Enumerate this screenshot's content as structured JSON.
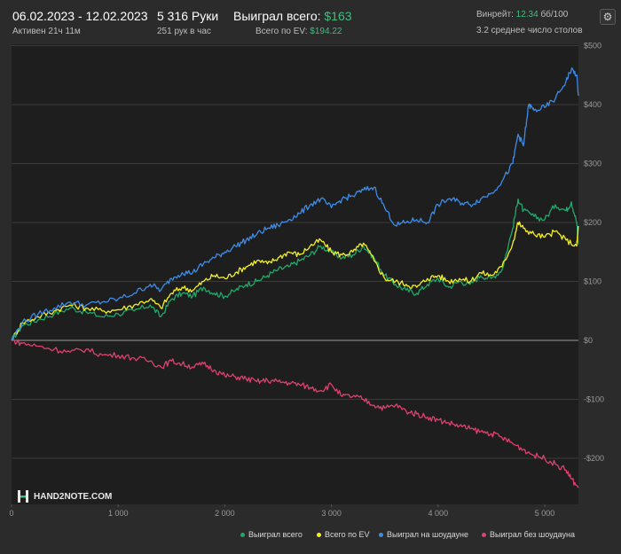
{
  "header": {
    "date_range": "06.02.2023 - 12.02.2023",
    "active_time": "Активен 21ч 11м",
    "hands": "5 316 Руки",
    "hands_rate": "251 рук в час",
    "won_label": "Выиграл всего:",
    "won_value": "$163",
    "ev_label": "Всего по EV:",
    "ev_value": "$194.22",
    "winrate_label": "Винрейт:",
    "winrate_value": "12.34",
    "winrate_suffix": "бб/100",
    "avg_tables": "3.2 среднее число столов"
  },
  "icons": {
    "settings": "gear-icon",
    "logo": "hand2note-logo-icon"
  },
  "logo_text": "HAND2NOTE.COM",
  "colors": {
    "background": "#2b2b2b",
    "won_total": "#1faa6a",
    "ev": "#f4f024",
    "showdown": "#3d8ce8",
    "non_showdown": "#e0406e"
  },
  "chart_data": {
    "type": "line",
    "x_ticks": [
      0,
      1000,
      2000,
      3000,
      4000,
      5000
    ],
    "x_tick_labels": [
      "0",
      "1 000",
      "2 000",
      "3 000",
      "4 000",
      "5 000"
    ],
    "y_ticks": [
      -200,
      -100,
      0,
      100,
      200,
      300,
      400,
      500
    ],
    "y_tick_labels": [
      "-$200",
      "-$100",
      "$0",
      "$100",
      "$200",
      "$300",
      "$400",
      "$500"
    ],
    "xlim": [
      0,
      5316
    ],
    "ylim": [
      -260,
      500
    ],
    "grid": "horizontal",
    "legend_position": "bottom-right",
    "series": [
      {
        "name": "Выиграл всего",
        "color": "#1faa6a",
        "points": [
          [
            0,
            0
          ],
          [
            100,
            25
          ],
          [
            250,
            35
          ],
          [
            400,
            45
          ],
          [
            550,
            55
          ],
          [
            700,
            48
          ],
          [
            850,
            40
          ],
          [
            1000,
            45
          ],
          [
            1150,
            50
          ],
          [
            1300,
            60
          ],
          [
            1400,
            40
          ],
          [
            1500,
            70
          ],
          [
            1600,
            80
          ],
          [
            1700,
            75
          ],
          [
            1800,
            90
          ],
          [
            1900,
            80
          ],
          [
            2000,
            75
          ],
          [
            2100,
            85
          ],
          [
            2200,
            95
          ],
          [
            2300,
            100
          ],
          [
            2400,
            110
          ],
          [
            2500,
            120
          ],
          [
            2600,
            125
          ],
          [
            2700,
            135
          ],
          [
            2800,
            145
          ],
          [
            2900,
            160
          ],
          [
            3000,
            150
          ],
          [
            3100,
            140
          ],
          [
            3200,
            145
          ],
          [
            3300,
            160
          ],
          [
            3400,
            140
          ],
          [
            3500,
            110
          ],
          [
            3600,
            95
          ],
          [
            3700,
            85
          ],
          [
            3800,
            80
          ],
          [
            3900,
            95
          ],
          [
            4000,
            105
          ],
          [
            4100,
            90
          ],
          [
            4200,
            100
          ],
          [
            4300,
            95
          ],
          [
            4400,
            110
          ],
          [
            4500,
            105
          ],
          [
            4600,
            120
          ],
          [
            4700,
            190
          ],
          [
            4750,
            240
          ],
          [
            4800,
            220
          ],
          [
            4900,
            210
          ],
          [
            5000,
            205
          ],
          [
            5100,
            230
          ],
          [
            5200,
            220
          ],
          [
            5250,
            235
          ],
          [
            5300,
            200
          ],
          [
            5316,
            163
          ]
        ]
      },
      {
        "name": "Всего по EV",
        "color": "#f4f024",
        "points": [
          [
            0,
            0
          ],
          [
            100,
            30
          ],
          [
            250,
            40
          ],
          [
            400,
            50
          ],
          [
            550,
            60
          ],
          [
            700,
            55
          ],
          [
            850,
            50
          ],
          [
            1000,
            52
          ],
          [
            1150,
            60
          ],
          [
            1300,
            70
          ],
          [
            1400,
            55
          ],
          [
            1500,
            80
          ],
          [
            1600,
            90
          ],
          [
            1700,
            85
          ],
          [
            1800,
            100
          ],
          [
            1900,
            110
          ],
          [
            2000,
            105
          ],
          [
            2100,
            115
          ],
          [
            2200,
            125
          ],
          [
            2300,
            135
          ],
          [
            2400,
            130
          ],
          [
            2500,
            140
          ],
          [
            2600,
            150
          ],
          [
            2700,
            145
          ],
          [
            2800,
            160
          ],
          [
            2900,
            170
          ],
          [
            3000,
            150
          ],
          [
            3100,
            145
          ],
          [
            3200,
            150
          ],
          [
            3300,
            165
          ],
          [
            3400,
            135
          ],
          [
            3500,
            105
          ],
          [
            3600,
            100
          ],
          [
            3700,
            95
          ],
          [
            3800,
            90
          ],
          [
            3900,
            105
          ],
          [
            4000,
            110
          ],
          [
            4100,
            100
          ],
          [
            4200,
            105
          ],
          [
            4300,
            100
          ],
          [
            4400,
            115
          ],
          [
            4500,
            110
          ],
          [
            4600,
            125
          ],
          [
            4700,
            165
          ],
          [
            4750,
            200
          ],
          [
            4800,
            190
          ],
          [
            4900,
            180
          ],
          [
            5000,
            175
          ],
          [
            5100,
            185
          ],
          [
            5200,
            170
          ],
          [
            5300,
            160
          ],
          [
            5316,
            194
          ]
        ]
      },
      {
        "name": "Выиграл на шоудауне",
        "color": "#3d8ce8",
        "points": [
          [
            0,
            0
          ],
          [
            100,
            30
          ],
          [
            250,
            45
          ],
          [
            400,
            55
          ],
          [
            550,
            65
          ],
          [
            700,
            60
          ],
          [
            850,
            65
          ],
          [
            1000,
            70
          ],
          [
            1150,
            80
          ],
          [
            1300,
            95
          ],
          [
            1400,
            85
          ],
          [
            1500,
            105
          ],
          [
            1600,
            115
          ],
          [
            1700,
            115
          ],
          [
            1800,
            130
          ],
          [
            1900,
            140
          ],
          [
            2000,
            150
          ],
          [
            2100,
            160
          ],
          [
            2200,
            170
          ],
          [
            2300,
            180
          ],
          [
            2400,
            190
          ],
          [
            2500,
            195
          ],
          [
            2600,
            205
          ],
          [
            2700,
            215
          ],
          [
            2800,
            230
          ],
          [
            2900,
            240
          ],
          [
            3000,
            225
          ],
          [
            3100,
            240
          ],
          [
            3200,
            245
          ],
          [
            3300,
            255
          ],
          [
            3400,
            260
          ],
          [
            3500,
            225
          ],
          [
            3600,
            195
          ],
          [
            3700,
            200
          ],
          [
            3800,
            205
          ],
          [
            3900,
            200
          ],
          [
            4000,
            230
          ],
          [
            4100,
            240
          ],
          [
            4200,
            235
          ],
          [
            4300,
            230
          ],
          [
            4400,
            240
          ],
          [
            4500,
            250
          ],
          [
            4600,
            270
          ],
          [
            4700,
            300
          ],
          [
            4750,
            350
          ],
          [
            4800,
            330
          ],
          [
            4850,
            400
          ],
          [
            4900,
            390
          ],
          [
            5000,
            395
          ],
          [
            5100,
            410
          ],
          [
            5200,
            440
          ],
          [
            5250,
            460
          ],
          [
            5300,
            450
          ],
          [
            5316,
            415
          ]
        ]
      },
      {
        "name": "Выиграл без шоудауна",
        "color": "#e0406e",
        "points": [
          [
            0,
            0
          ],
          [
            100,
            -5
          ],
          [
            250,
            -10
          ],
          [
            400,
            -15
          ],
          [
            550,
            -20
          ],
          [
            700,
            -15
          ],
          [
            850,
            -25
          ],
          [
            1000,
            -25
          ],
          [
            1150,
            -30
          ],
          [
            1300,
            -35
          ],
          [
            1400,
            -45
          ],
          [
            1500,
            -35
          ],
          [
            1600,
            -40
          ],
          [
            1700,
            -45
          ],
          [
            1800,
            -40
          ],
          [
            1900,
            -50
          ],
          [
            2000,
            -60
          ],
          [
            2100,
            -62
          ],
          [
            2200,
            -65
          ],
          [
            2300,
            -70
          ],
          [
            2400,
            -68
          ],
          [
            2500,
            -70
          ],
          [
            2600,
            -72
          ],
          [
            2700,
            -75
          ],
          [
            2800,
            -80
          ],
          [
            2900,
            -85
          ],
          [
            3000,
            -75
          ],
          [
            3100,
            -95
          ],
          [
            3200,
            -95
          ],
          [
            3300,
            -100
          ],
          [
            3400,
            -110
          ],
          [
            3500,
            -115
          ],
          [
            3600,
            -110
          ],
          [
            3700,
            -120
          ],
          [
            3800,
            -125
          ],
          [
            3900,
            -130
          ],
          [
            4000,
            -135
          ],
          [
            4100,
            -140
          ],
          [
            4200,
            -145
          ],
          [
            4300,
            -150
          ],
          [
            4400,
            -155
          ],
          [
            4500,
            -158
          ],
          [
            4600,
            -165
          ],
          [
            4700,
            -175
          ],
          [
            4800,
            -185
          ],
          [
            4900,
            -195
          ],
          [
            5000,
            -200
          ],
          [
            5100,
            -210
          ],
          [
            5200,
            -220
          ],
          [
            5250,
            -235
          ],
          [
            5316,
            -250
          ]
        ]
      }
    ]
  }
}
